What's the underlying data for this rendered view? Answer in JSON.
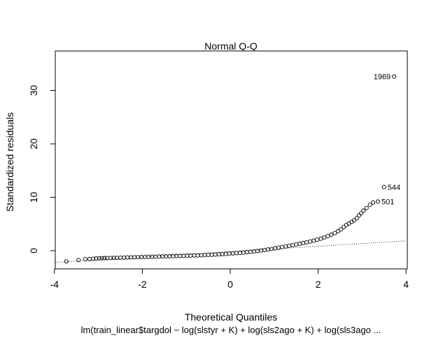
{
  "chart_data": {
    "type": "scatter",
    "title": "Normal Q-Q",
    "xlabel": "Theoretical Quantiles",
    "ylabel": "Standardized residuals",
    "subtitle": "lm(train_linear$targdol ~ log(slstyr + K) + log(sls2ago + K) + log(sls3ago  ...",
    "xlim": [
      -4,
      4
    ],
    "ylim": [
      -3,
      37
    ],
    "x_ticks": [
      -4,
      -2,
      0,
      2,
      4
    ],
    "y_ticks": [
      0,
      10,
      20,
      30
    ],
    "x_tick_labels": [
      "-4",
      "-2",
      "0",
      "2",
      "4"
    ],
    "y_tick_labels": [
      "0",
      "10",
      "20",
      "30"
    ],
    "grid": false,
    "legend": "none",
    "point_color": "#000000",
    "reference_line": {
      "style": "dotted",
      "points": [
        [
          -4,
          -2.2
        ],
        [
          4,
          1.85
        ]
      ]
    },
    "series": [
      {
        "values": [
          [
            -3.73,
            -2.0
          ],
          [
            -3.45,
            -1.75
          ],
          [
            -3.3,
            -1.6
          ],
          [
            -3.2,
            -1.55
          ],
          [
            -3.12,
            -1.5
          ],
          [
            -3.05,
            -1.45
          ],
          [
            -2.98,
            -1.42
          ],
          [
            -2.92,
            -1.4
          ],
          [
            -2.86,
            -1.38
          ],
          [
            -2.8,
            -1.37
          ],
          [
            -2.72,
            -1.36
          ],
          [
            -2.65,
            -1.34
          ],
          [
            -2.58,
            -1.33
          ],
          [
            -2.5,
            -1.31
          ],
          [
            -2.42,
            -1.29
          ],
          [
            -2.34,
            -1.27
          ],
          [
            -2.26,
            -1.25
          ],
          [
            -2.18,
            -1.23
          ],
          [
            -2.1,
            -1.21
          ],
          [
            -2.02,
            -1.19
          ],
          [
            -1.94,
            -1.17
          ],
          [
            -1.86,
            -1.15
          ],
          [
            -1.78,
            -1.13
          ],
          [
            -1.7,
            -1.11
          ],
          [
            -1.62,
            -1.09
          ],
          [
            -1.54,
            -1.07
          ],
          [
            -1.46,
            -1.05
          ],
          [
            -1.38,
            -1.03
          ],
          [
            -1.3,
            -1.01
          ],
          [
            -1.22,
            -0.99
          ],
          [
            -1.14,
            -0.97
          ],
          [
            -1.06,
            -0.95
          ],
          [
            -0.98,
            -0.93
          ],
          [
            -0.9,
            -0.91
          ],
          [
            -0.82,
            -0.89
          ],
          [
            -0.74,
            -0.87
          ],
          [
            -0.66,
            -0.85
          ],
          [
            -0.58,
            -0.82
          ],
          [
            -0.5,
            -0.79
          ],
          [
            -0.42,
            -0.76
          ],
          [
            -0.34,
            -0.72
          ],
          [
            -0.26,
            -0.68
          ],
          [
            -0.18,
            -0.64
          ],
          [
            -0.1,
            -0.6
          ],
          [
            -0.02,
            -0.55
          ],
          [
            0.06,
            -0.5
          ],
          [
            0.14,
            -0.45
          ],
          [
            0.22,
            -0.4
          ],
          [
            0.3,
            -0.34
          ],
          [
            0.38,
            -0.28
          ],
          [
            0.46,
            -0.21
          ],
          [
            0.54,
            -0.13
          ],
          [
            0.62,
            -0.05
          ],
          [
            0.7,
            0.04
          ],
          [
            0.78,
            0.13
          ],
          [
            0.86,
            0.23
          ],
          [
            0.94,
            0.33
          ],
          [
            1.02,
            0.44
          ],
          [
            1.1,
            0.56
          ],
          [
            1.18,
            0.68
          ],
          [
            1.26,
            0.8
          ],
          [
            1.34,
            0.93
          ],
          [
            1.42,
            1.05
          ],
          [
            1.5,
            1.18
          ],
          [
            1.58,
            1.3
          ],
          [
            1.66,
            1.43
          ],
          [
            1.74,
            1.57
          ],
          [
            1.82,
            1.72
          ],
          [
            1.9,
            1.88
          ],
          [
            1.98,
            2.06
          ],
          [
            2.06,
            2.26
          ],
          [
            2.14,
            2.48
          ],
          [
            2.22,
            2.72
          ],
          [
            2.3,
            3.0
          ],
          [
            2.38,
            3.3
          ],
          [
            2.45,
            3.65
          ],
          [
            2.52,
            4.0
          ],
          [
            2.58,
            4.4
          ],
          [
            2.64,
            4.8
          ],
          [
            2.7,
            5.1
          ],
          [
            2.76,
            5.4
          ],
          [
            2.82,
            5.7
          ],
          [
            2.88,
            6.1
          ],
          [
            2.93,
            6.6
          ],
          [
            2.98,
            7.0
          ],
          [
            3.03,
            7.5
          ],
          [
            3.1,
            8.0
          ],
          [
            3.18,
            8.6
          ],
          [
            3.25,
            9.0
          ],
          [
            3.36,
            9.2
          ],
          [
            3.5,
            11.9
          ],
          [
            3.73,
            32.6
          ]
        ]
      }
    ],
    "annotations": [
      {
        "text": "1969",
        "x": 3.73,
        "y": 32.6,
        "side": "left"
      },
      {
        "text": "544",
        "x": 3.5,
        "y": 11.9,
        "side": "right"
      },
      {
        "text": "501",
        "x": 3.36,
        "y": 9.2,
        "side": "right"
      }
    ]
  }
}
